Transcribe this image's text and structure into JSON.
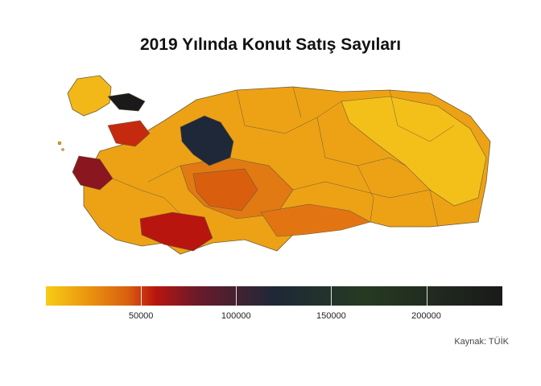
{
  "title": "2019 Yılında Konut Satış Sayıları",
  "caption": "Kaynak: TÜİK",
  "legend": {
    "min": 0,
    "max": 240000,
    "ticks": [
      "50000",
      "100000",
      "150000",
      "200000"
    ],
    "tick_values": [
      50000,
      100000,
      150000,
      200000
    ],
    "colors": [
      "#f7cc16",
      "#e9900f",
      "#d95f0f",
      "#b8150e",
      "#6b1a2a",
      "#1e2838",
      "#263a22",
      "#1a1a1a"
    ]
  },
  "map": {
    "country": "Türkiye",
    "highlights": [
      {
        "name": "İstanbul",
        "color": "#1a1a1a"
      },
      {
        "name": "Ankara",
        "color": "#1e2838"
      },
      {
        "name": "İzmir",
        "color": "#8a1620"
      },
      {
        "name": "Antalya",
        "color": "#b8150e"
      },
      {
        "name": "Bursa",
        "color": "#c62a0e"
      }
    ]
  }
}
